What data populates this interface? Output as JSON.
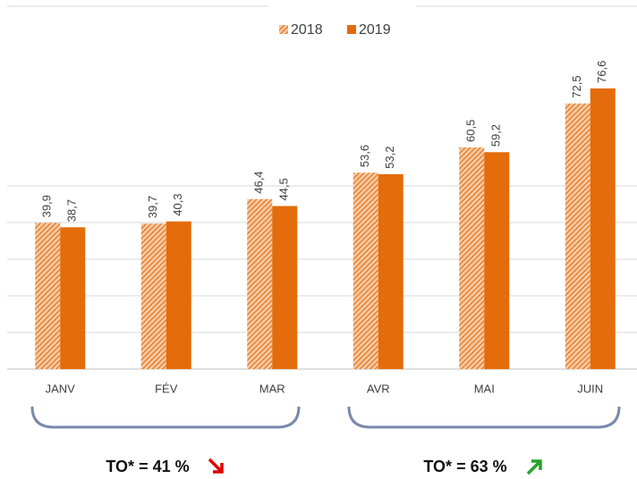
{
  "chart_data": {
    "type": "bar",
    "categories": [
      "JANV",
      "FÉV",
      "MAR",
      "AVR",
      "MAI",
      "JUIN"
    ],
    "series": [
      {
        "name": "2018",
        "color": "#e46c0a",
        "pattern": "hatch",
        "values": [
          39.9,
          39.7,
          46.4,
          53.6,
          60.5,
          72.5
        ],
        "value_labels": [
          "39,9",
          "39,7",
          "46,4",
          "53,6",
          "60,5",
          "72,5"
        ]
      },
      {
        "name": "2019",
        "color": "#e46c0a",
        "pattern": "solid",
        "values": [
          38.7,
          40.3,
          44.5,
          53.2,
          59.2,
          76.6
        ],
        "value_labels": [
          "38,7",
          "40,3",
          "44,5",
          "53,2",
          "59,2",
          "76,6"
        ]
      }
    ],
    "ylim": [
      0,
      100
    ],
    "yticks": [
      0,
      10,
      20,
      30,
      40,
      50
    ],
    "grid": true,
    "legend": "top",
    "annotations": [
      "TO* = 41 %",
      "TO* = 63 %"
    ]
  }
}
